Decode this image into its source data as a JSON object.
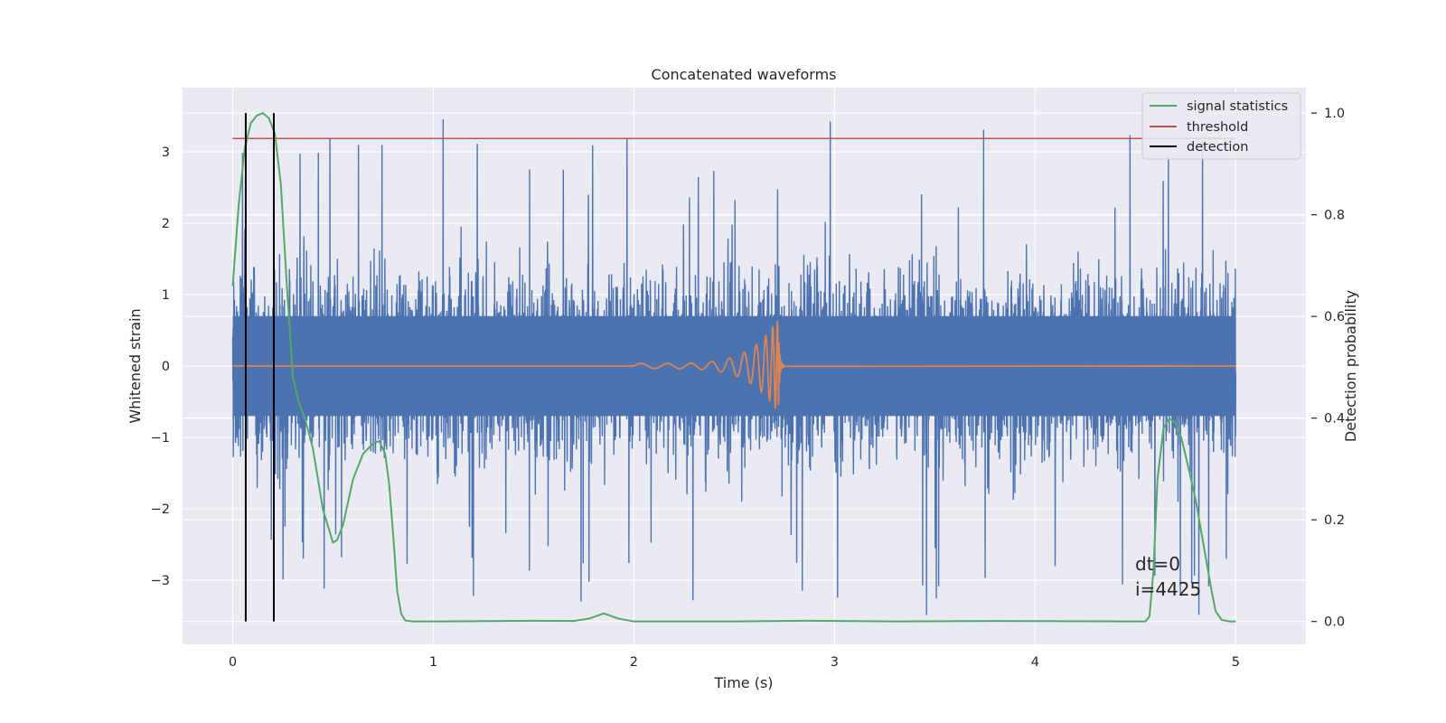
{
  "chart_data": {
    "type": "line",
    "title": "Concatenated waveforms",
    "xlabel": "Time (s)",
    "ylabel": "Whitened strain",
    "y2label": "Detection probability",
    "xlim": [
      -0.25,
      5.35
    ],
    "ylim": [
      -3.9,
      3.9
    ],
    "y2lim": [
      -0.045,
      1.05
    ],
    "xticks": [
      0,
      1,
      2,
      3,
      4,
      5
    ],
    "yticks": [
      -3,
      -2,
      -1,
      0,
      1,
      2,
      3
    ],
    "y2ticks": [
      0.0,
      0.2,
      0.4,
      0.6,
      0.8,
      1.0
    ],
    "y2tick_labels": [
      "0.0",
      "0.2",
      "0.4",
      "0.6",
      "0.8",
      "1.0"
    ],
    "grid": true,
    "legend_position": "upper right",
    "colors": {
      "background": "#eaeaf2",
      "grid": "#ffffff",
      "strain": "#4c72b0",
      "waveform": "#dd8452",
      "statistics": "#55a868",
      "threshold": "#c44e52",
      "detection": "#000000"
    },
    "series": [
      {
        "name": "whitened strain (noise)",
        "axis": "left",
        "x_range": [
          0,
          5
        ],
        "core_amplitude": 0.7,
        "peak_amplitude_max": 3.55,
        "peak_amplitude_min": -3.55
      },
      {
        "name": "injected waveform",
        "axis": "left",
        "x_start": 2.0,
        "x_merger": 2.72,
        "peak_amplitude": 0.65
      },
      {
        "name": "signal statistics",
        "axis": "right",
        "x": [
          0.0,
          0.03,
          0.06,
          0.09,
          0.12,
          0.15,
          0.18,
          0.21,
          0.24,
          0.27,
          0.3,
          0.33,
          0.36,
          0.4,
          0.45,
          0.5,
          0.52,
          0.55,
          0.6,
          0.65,
          0.7,
          0.73,
          0.76,
          0.78,
          0.8,
          0.82,
          0.84,
          0.86,
          0.9,
          1.0,
          1.5,
          1.7,
          1.78,
          1.85,
          1.92,
          2.0,
          2.5,
          2.88,
          3.3,
          3.8,
          4.5,
          4.55,
          4.57,
          4.59,
          4.61,
          4.64,
          4.67,
          4.7,
          4.73,
          4.76,
          4.8,
          4.84,
          4.88,
          4.9,
          4.93,
          4.97,
          5.0
        ],
        "values": [
          0.66,
          0.82,
          0.93,
          0.98,
          0.995,
          1.0,
          0.99,
          0.96,
          0.86,
          0.66,
          0.48,
          0.43,
          0.4,
          0.34,
          0.22,
          0.155,
          0.16,
          0.19,
          0.28,
          0.33,
          0.35,
          0.355,
          0.33,
          0.27,
          0.17,
          0.06,
          0.015,
          0.002,
          0.0,
          0.0,
          0.0015,
          0.001,
          0.006,
          0.016,
          0.006,
          0.0,
          0.0,
          0.0015,
          0.0,
          0.001,
          0.0,
          0.0,
          0.01,
          0.1,
          0.28,
          0.38,
          0.4,
          0.39,
          0.36,
          0.31,
          0.24,
          0.15,
          0.06,
          0.02,
          0.003,
          0.0,
          0.0
        ]
      },
      {
        "name": "threshold",
        "axis": "right",
        "x": [
          0,
          5
        ],
        "values": [
          0.95,
          0.95
        ]
      },
      {
        "name": "detection",
        "axis": "right",
        "vlines_x": [
          0.065,
          0.205
        ],
        "y_range": [
          0.0,
          1.0
        ]
      }
    ],
    "legend": [
      "signal statistics",
      "threshold",
      "detection"
    ],
    "annotations": [
      "dt=0",
      "i=4425"
    ]
  }
}
